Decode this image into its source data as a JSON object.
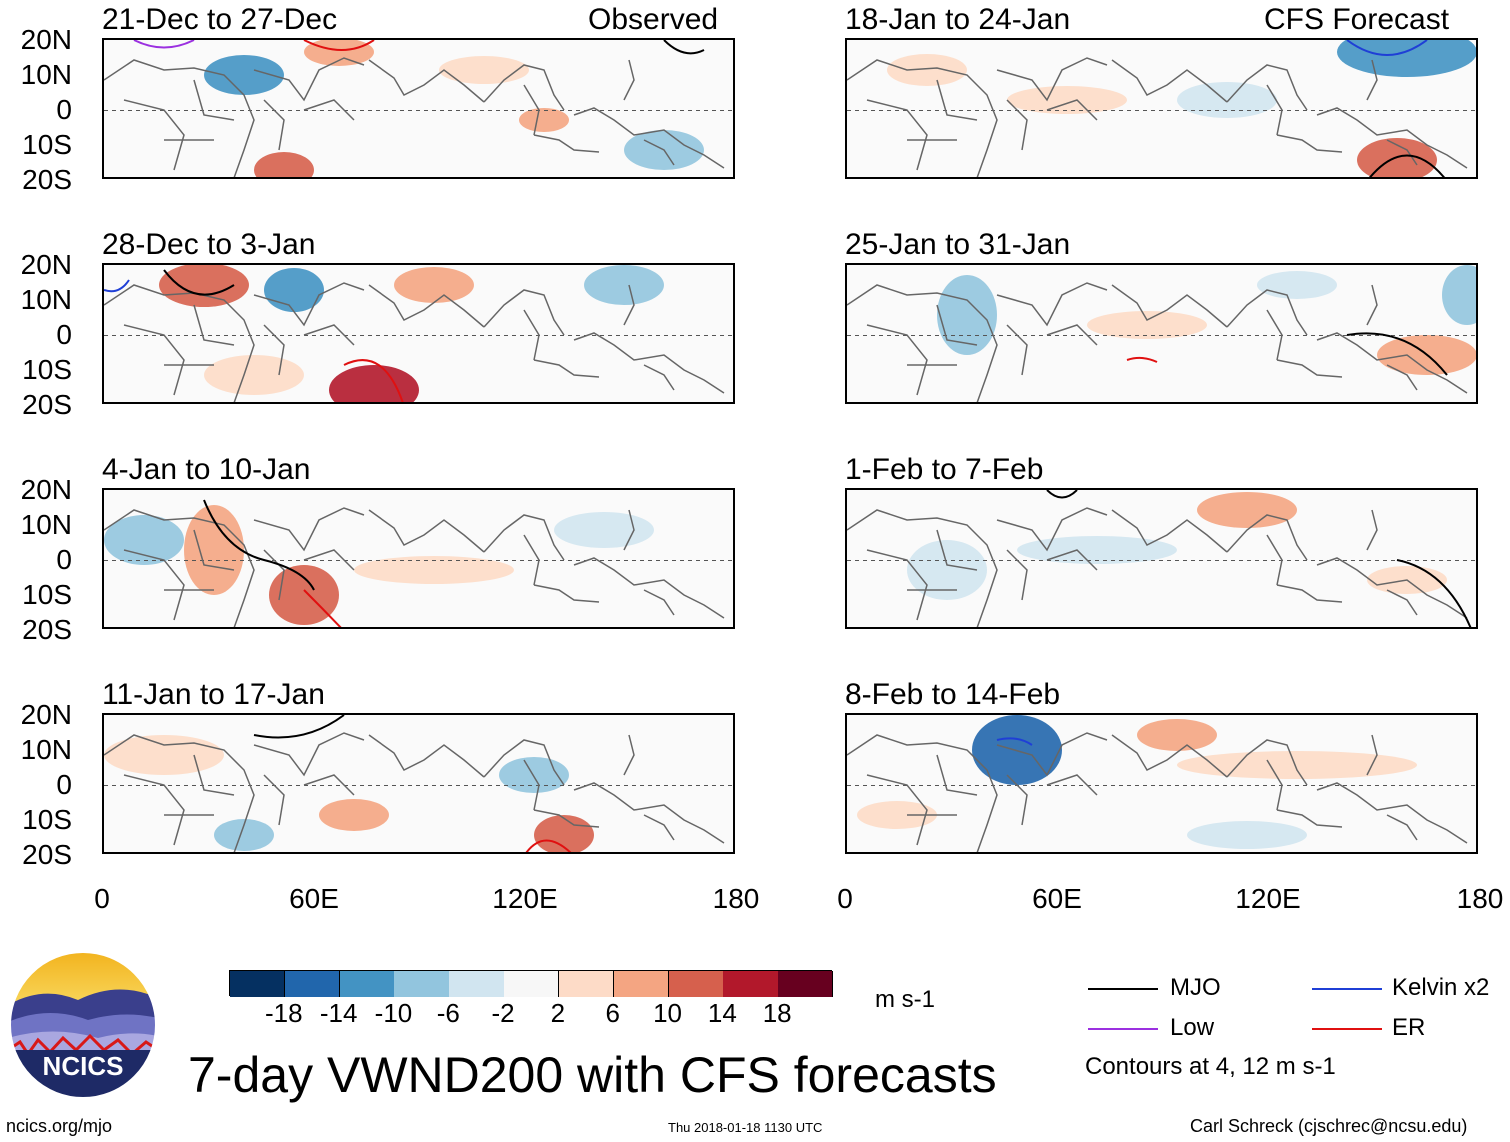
{
  "panels": {
    "observed": [
      {
        "dates": "21-Dec to 27-Dec",
        "label": "Observed"
      },
      {
        "dates": "28-Dec to 3-Jan"
      },
      {
        "dates": "4-Jan to 10-Jan"
      },
      {
        "dates": "11-Jan to 17-Jan"
      }
    ],
    "forecast": [
      {
        "dates": "18-Jan to 24-Jan",
        "label": "CFS Forecast"
      },
      {
        "dates": "25-Jan to 31-Jan"
      },
      {
        "dates": "1-Feb to 7-Feb"
      },
      {
        "dates": "8-Feb to 14-Feb"
      }
    ]
  },
  "axes": {
    "y_labels": [
      "20N",
      "10N",
      "0",
      "10S",
      "20S"
    ],
    "x_labels": [
      "0",
      "60E",
      "120E",
      "180"
    ]
  },
  "colorbar": {
    "ticks": [
      "-18",
      "-14",
      "-10",
      "-6",
      "-2",
      "2",
      "6",
      "10",
      "14",
      "18"
    ],
    "units": "m s-1",
    "colors": [
      "#053061",
      "#2166ac",
      "#4393c3",
      "#92c5de",
      "#d1e5f0",
      "#f7f7f7",
      "#fddbc7",
      "#f4a582",
      "#d6604d",
      "#b2182b",
      "#67001f"
    ]
  },
  "legend": {
    "mjo": "MJO",
    "kelvin": "Kelvin x2",
    "low": "Low",
    "er": "ER",
    "contours": "Contours at 4, 12 m s-1",
    "colors": {
      "mjo": "#000000",
      "kelvin": "#1f3fd6",
      "low": "#9b30e0",
      "er": "#e01010"
    }
  },
  "logo_text": "NCICS",
  "main_title": "7-day VWND200 with CFS forecasts",
  "footer": {
    "left": "ncics.org/mjo",
    "center": "Thu 2018-01-18 1130 UTC",
    "right": "Carl Schreck (cjschrec@ncsu.edu)"
  }
}
